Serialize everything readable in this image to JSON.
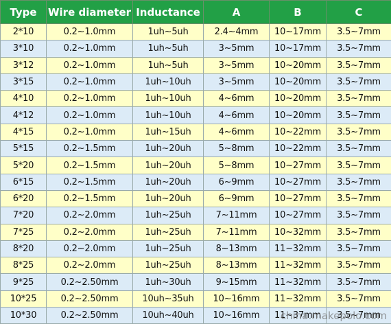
{
  "table": {
    "header": [
      "Type",
      "Wire diameter",
      "Inductance",
      "A",
      "B",
      "C"
    ],
    "rows": [
      [
        "2*10",
        "0.2~1.0mm",
        "1uh~5uh",
        "2.4~4mm",
        "10~17mm",
        "3.5~7mm"
      ],
      [
        "3*10",
        "0.2~1.0mm",
        "1uh~5uh",
        "3~5mm",
        "10~17mm",
        "3.5~7mm"
      ],
      [
        "3*12",
        "0.2~1.0mm",
        "1uh~5uh",
        "3~5mm",
        "10~20mm",
        "3.5~7mm"
      ],
      [
        "3*15",
        "0.2~1.0mm",
        "1uh~10uh",
        "3~5mm",
        "10~20mm",
        "3.5~7mm"
      ],
      [
        "4*10",
        "0.2~1.0mm",
        "1uh~10uh",
        "4~6mm",
        "10~20mm",
        "3.5~7mm"
      ],
      [
        "4*12",
        "0.2~1.0mm",
        "1uh~10uh",
        "4~6mm",
        "10~20mm",
        "3.5~7mm"
      ],
      [
        "4*15",
        "0.2~1.0mm",
        "1uh~15uh",
        "4~6mm",
        "10~22mm",
        "3.5~7mm"
      ],
      [
        "5*15",
        "0.2~1.5mm",
        "1uh~20uh",
        "5~8mm",
        "10~22mm",
        "3.5~7mm"
      ],
      [
        "5*20",
        "0.2~1.5mm",
        "1uh~20uh",
        "5~8mm",
        "10~27mm",
        "3.5~7mm"
      ],
      [
        "6*15",
        "0.2~1.5mm",
        "1uh~20uh",
        "6~9mm",
        "10~27mm",
        "3.5~7mm"
      ],
      [
        "6*20",
        "0.2~1.5mm",
        "1uh~20uh",
        "6~9mm",
        "10~27mm",
        "3.5~7mm"
      ],
      [
        "7*20",
        "0.2~2.0mm",
        "1uh~25uh",
        "7~11mm",
        "10~27mm",
        "3.5~7mm"
      ],
      [
        "7*25",
        "0.2~2.0mm",
        "1uh~25uh",
        "7~11mm",
        "10~32mm",
        "3.5~7mm"
      ],
      [
        "8*20",
        "0.2~2.0mm",
        "1uh~25uh",
        "8~13mm",
        "11~32mm",
        "3.5~7mm"
      ],
      [
        "8*25",
        "0.2~2.0mm",
        "1uh~25uh",
        "8~13mm",
        "11~32mm",
        "3.5~7mm"
      ],
      [
        "9*25",
        "0.2~2.50mm",
        "1uh~30uh",
        "9~15mm",
        "11~32mm",
        "3.5~7mm"
      ],
      [
        "10*25",
        "0.2~2.50mm",
        "10uh~35uh",
        "10~16mm",
        "11~32mm",
        "3.5~7mm"
      ],
      [
        "10*30",
        "0.2~2.50mm",
        "10uh~40uh",
        "10~16mm",
        "11~37mm",
        "3.5~7mm"
      ]
    ]
  },
  "watermark": "china.makepolo.com"
}
